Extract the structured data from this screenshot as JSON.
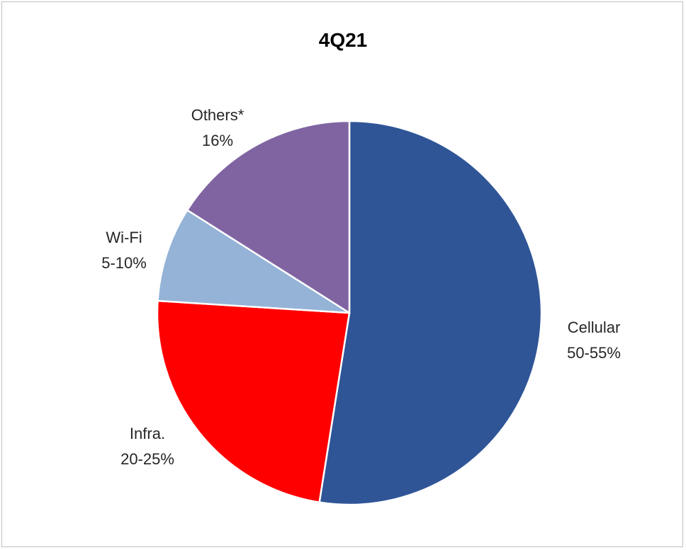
{
  "chart_data": {
    "type": "pie",
    "title": "4Q21",
    "slices": [
      {
        "name": "Cellular",
        "label": "50-55%",
        "value": 52.5,
        "color": "#2f5597"
      },
      {
        "name": "Infra.",
        "label": "20-25%",
        "value": 23.5,
        "color": "#ff0000"
      },
      {
        "name": "Wi-Fi",
        "label": "5-10%",
        "value": 8,
        "color": "#95b3d7"
      },
      {
        "name": "Others*",
        "label": "16%",
        "value": 16,
        "color": "#8064a2"
      }
    ],
    "start_angle_deg": 0,
    "direction": "clockwise",
    "legend": "none"
  }
}
